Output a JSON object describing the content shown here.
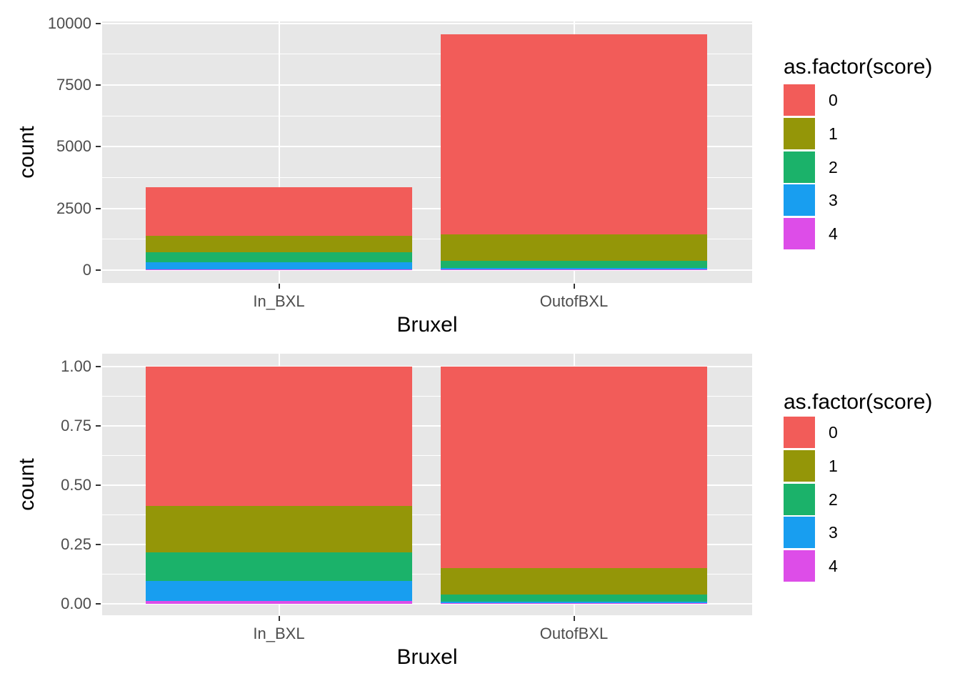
{
  "figure": {
    "background": "#FFFFFF",
    "panel_background": "#E7E7E7",
    "grid_color": "#FFFFFF",
    "tick_color": "#333333",
    "tick_label_color": "#4D4D4D",
    "axis_title_color": "#000000"
  },
  "legend": {
    "title": "as.factor(score)",
    "position": "right",
    "entries": [
      {
        "label": "0",
        "color": "#F25C59"
      },
      {
        "label": "1",
        "color": "#949608"
      },
      {
        "label": "2",
        "color": "#1BB26A"
      },
      {
        "label": "3",
        "color": "#189EF0"
      },
      {
        "label": "4",
        "color": "#DD4DE8"
      }
    ]
  },
  "chart_data": [
    {
      "type": "bar",
      "subtype": "stacked",
      "position": "stack",
      "title": "",
      "xlabel": "Bruxel",
      "ylabel": "count",
      "categories": [
        "In_BXL",
        "OutofBXL"
      ],
      "series": [
        {
          "name": "0",
          "color": "#F25C59",
          "values": [
            1970,
            8110
          ]
        },
        {
          "name": "1",
          "color": "#949608",
          "values": [
            660,
            1080
          ]
        },
        {
          "name": "2",
          "color": "#1BB26A",
          "values": [
            405,
            295
          ]
        },
        {
          "name": "3",
          "color": "#189EF0",
          "values": [
            280,
            60
          ]
        },
        {
          "name": "4",
          "color": "#DD4DE8",
          "values": [
            40,
            15
          ]
        }
      ],
      "totals": [
        3355,
        9560
      ],
      "stack_bottom_to_top": [
        "4",
        "3",
        "2",
        "1",
        "0"
      ],
      "ylim": [
        0,
        10000
      ],
      "y_ticks": [
        0,
        2500,
        5000,
        7500,
        10000
      ],
      "y_tick_labels": [
        "0",
        "2500",
        "5000",
        "7500",
        "10000"
      ],
      "legend_title": "as.factor(score)",
      "legend_position": "right",
      "grid": "major+minor"
    },
    {
      "type": "bar",
      "subtype": "stacked",
      "position": "fill",
      "title": "",
      "xlabel": "Bruxel",
      "ylabel": "count",
      "categories": [
        "In_BXL",
        "OutofBXL"
      ],
      "series": [
        {
          "name": "0",
          "color": "#F25C59",
          "values": [
            0.587,
            0.848
          ]
        },
        {
          "name": "1",
          "color": "#949608",
          "values": [
            0.196,
            0.113
          ]
        },
        {
          "name": "2",
          "color": "#1BB26A",
          "values": [
            0.121,
            0.031
          ]
        },
        {
          "name": "3",
          "color": "#189EF0",
          "values": [
            0.084,
            0.006
          ]
        },
        {
          "name": "4",
          "color": "#DD4DE8",
          "values": [
            0.012,
            0.002
          ]
        }
      ],
      "stack_bottom_to_top": [
        "4",
        "3",
        "2",
        "1",
        "0"
      ],
      "ylim": [
        0,
        1
      ],
      "y_ticks": [
        0,
        0.25,
        0.5,
        0.75,
        1.0
      ],
      "y_tick_labels": [
        "0.00",
        "0.25",
        "0.50",
        "0.75",
        "1.00"
      ],
      "legend_title": "as.factor(score)",
      "legend_position": "right",
      "grid": "major+minor"
    }
  ]
}
